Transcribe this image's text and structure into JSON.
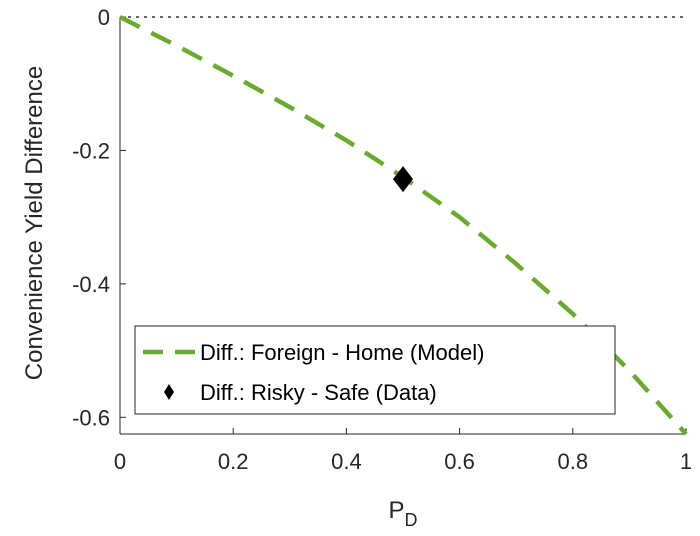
{
  "chart_data": {
    "type": "line",
    "title": "",
    "xlabel": "P",
    "xlabel_subscript": "D",
    "ylabel": "Convenience Yield Difference",
    "xlim": [
      0,
      1
    ],
    "ylim": [
      -0.625,
      0.0
    ],
    "x_ticks": [
      0,
      0.2,
      0.4,
      0.6,
      0.8,
      1
    ],
    "x_tick_labels": [
      "0",
      "0.2",
      "0.4",
      "0.6",
      "0.8",
      "1"
    ],
    "y_ticks": [
      0,
      -0.2,
      -0.4,
      -0.6
    ],
    "y_tick_labels": [
      "0",
      "-0.2",
      "-0.4",
      "-0.6"
    ],
    "grid": false,
    "legend_position": "bottom-left",
    "reference_line": {
      "y": 0,
      "style": "dotted",
      "color": "#333333"
    },
    "series": [
      {
        "name": "Diff.: Foreign - Home (Model)",
        "kind": "line",
        "style": "dashed",
        "color": "#6AAB2E",
        "x": [
          0,
          0.1,
          0.2,
          0.3,
          0.4,
          0.5,
          0.6,
          0.7,
          0.8,
          0.9,
          1.0
        ],
        "y": [
          0,
          -0.043,
          -0.088,
          -0.135,
          -0.185,
          -0.24,
          -0.3,
          -0.37,
          -0.445,
          -0.53,
          -0.625
        ]
      },
      {
        "name": "Diff.: Risky - Safe (Data)",
        "kind": "scatter",
        "marker": "diamond",
        "color": "#000000",
        "x": [
          0.5
        ],
        "y": [
          -0.243
        ]
      }
    ]
  }
}
